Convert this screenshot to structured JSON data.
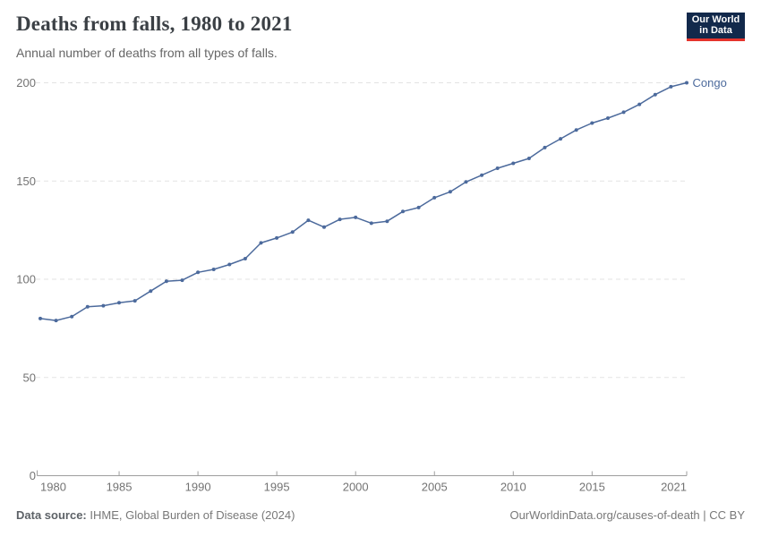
{
  "header": {
    "title": "Deaths from falls, 1980 to 2021",
    "subtitle": "Annual number of deaths from all types of falls."
  },
  "logo": {
    "line1": "Our World",
    "line2": "in Data"
  },
  "chart_data": {
    "type": "line",
    "title": "Deaths from falls, 1980 to 2021",
    "subtitle": "Annual number of deaths from all types of falls.",
    "x": [
      1980,
      1981,
      1982,
      1983,
      1984,
      1985,
      1986,
      1987,
      1988,
      1989,
      1990,
      1991,
      1992,
      1993,
      1994,
      1995,
      1996,
      1997,
      1998,
      1999,
      2000,
      2001,
      2002,
      2003,
      2004,
      2005,
      2006,
      2007,
      2008,
      2009,
      2010,
      2011,
      2012,
      2013,
      2014,
      2015,
      2016,
      2017,
      2018,
      2019,
      2020,
      2021
    ],
    "series": [
      {
        "name": "Congo",
        "color": "#4C6A9C",
        "values": [
          80,
          79,
          81,
          86,
          86.5,
          88,
          89,
          94,
          99,
          99.5,
          103.5,
          105,
          107.5,
          110.5,
          118.5,
          121,
          124,
          130,
          126.5,
          130.5,
          131.5,
          128.5,
          129.5,
          134.5,
          136.5,
          141.5,
          144.5,
          149.5,
          153,
          156.5,
          159,
          161.5,
          167,
          171.5,
          176,
          179.5,
          182,
          185,
          189,
          194,
          198,
          200
        ]
      }
    ],
    "xlim": [
      1980,
      2021
    ],
    "ylim": [
      0,
      200
    ],
    "x_ticks": [
      1980,
      1985,
      1990,
      1995,
      2000,
      2005,
      2010,
      2015,
      2021
    ],
    "y_ticks": [
      0,
      50,
      100,
      150,
      200
    ],
    "grid": "horizontal-dashed",
    "legend": "end-of-line-label",
    "end_label": "Congo"
  },
  "footer": {
    "source_label": "Data source:",
    "source_text": " IHME, Global Burden of Disease (2024)",
    "credit": "OurWorldinData.org/causes-of-death | CC BY"
  },
  "colors": {
    "line": "#4C6A9C",
    "grid": "#e3e3e3",
    "axis": "#9e9e9e",
    "tick_label": "#737373",
    "end_label": "#4C6A9C"
  }
}
